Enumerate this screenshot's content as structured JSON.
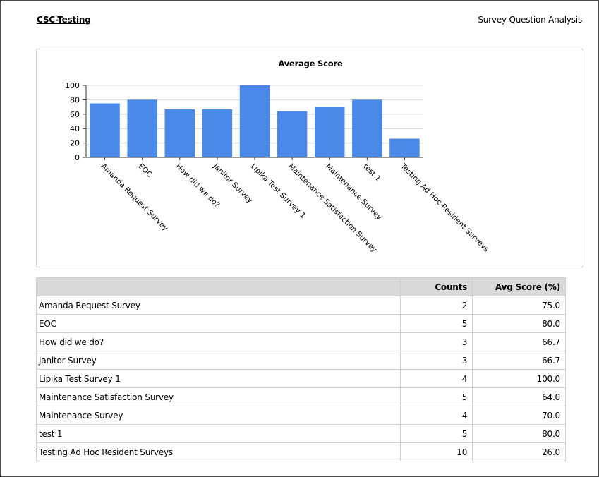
{
  "header": {
    "org_title": "CSC-Testing",
    "report_title": "Survey Question Analysis"
  },
  "chart_data": {
    "type": "bar",
    "title": "Average Score",
    "xlabel": "",
    "ylabel": "",
    "ylim": [
      0,
      100
    ],
    "yticks": [
      0,
      20,
      40,
      60,
      80,
      100
    ],
    "grid": true,
    "bar_color": "#4a89e8",
    "categories": [
      "Amanda Request Survey",
      "EOC",
      "How did we do?",
      "Janitor Survey",
      "Lipika Test Survey 1",
      "Maintenance Satisfaction Survey",
      "Maintenance Survey",
      "test 1",
      "Testing Ad Hoc Resident Surveys"
    ],
    "values": [
      75.0,
      80.0,
      66.7,
      66.7,
      100.0,
      64.0,
      70.0,
      80.0,
      26.0
    ]
  },
  "table": {
    "headers": {
      "name": "",
      "counts": "Counts",
      "avg": "Avg Score (%)"
    },
    "rows": [
      {
        "name": "Amanda Request Survey",
        "counts": "2",
        "avg": "75.0"
      },
      {
        "name": "EOC",
        "counts": "5",
        "avg": "80.0"
      },
      {
        "name": "How did we do?",
        "counts": "3",
        "avg": "66.7"
      },
      {
        "name": "Janitor Survey",
        "counts": "3",
        "avg": "66.7"
      },
      {
        "name": "Lipika Test Survey 1",
        "counts": "4",
        "avg": "100.0"
      },
      {
        "name": "Maintenance Satisfaction Survey",
        "counts": "5",
        "avg": "64.0"
      },
      {
        "name": "Maintenance Survey",
        "counts": "4",
        "avg": "70.0"
      },
      {
        "name": "test 1",
        "counts": "5",
        "avg": "80.0"
      },
      {
        "name": "Testing Ad Hoc Resident Surveys",
        "counts": "10",
        "avg": "26.0"
      }
    ]
  }
}
